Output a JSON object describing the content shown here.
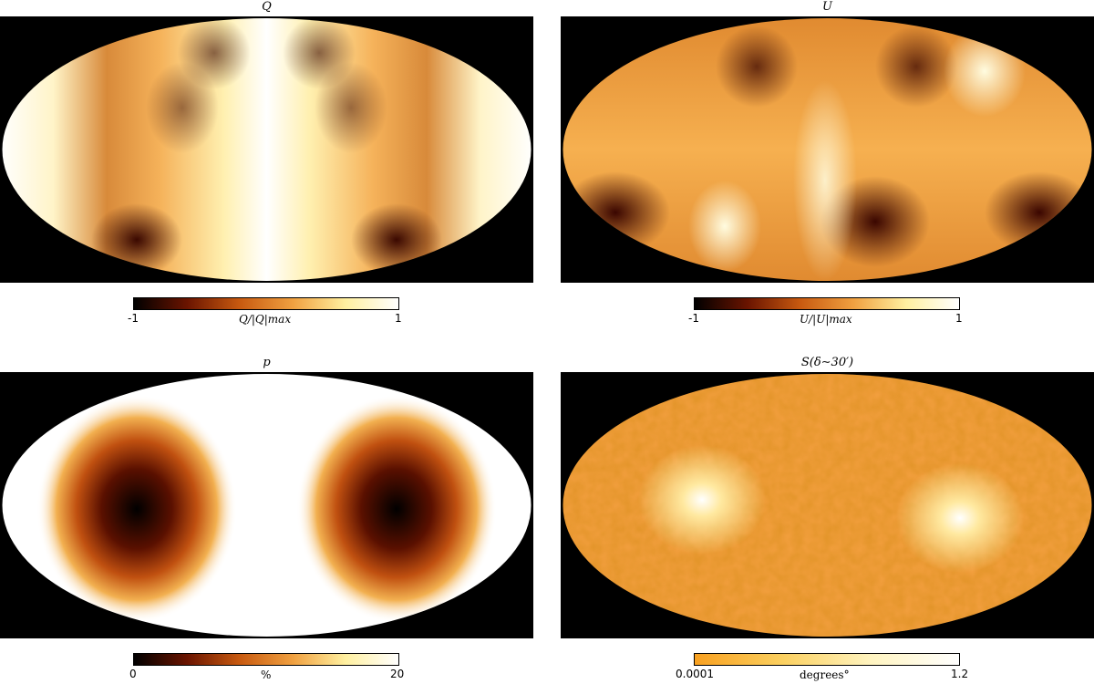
{
  "panels": {
    "q": {
      "title": "Q",
      "colorbar": {
        "min": "-1",
        "max": "1",
        "label": "Q/|Q|max",
        "colormap": [
          "#000000",
          "#6a1400",
          "#c85a10",
          "#f0a040",
          "#fff0a0",
          "#ffffff"
        ]
      }
    },
    "u": {
      "title": "U",
      "colorbar": {
        "min": "-1",
        "max": "1",
        "label": "U/|U|max",
        "colormap": [
          "#000000",
          "#6a1400",
          "#c85a10",
          "#f0a040",
          "#fff0a0",
          "#ffffff"
        ]
      }
    },
    "p": {
      "title": "p",
      "colorbar": {
        "min": "0",
        "max": "20",
        "label": "%",
        "colormap": [
          "#000000",
          "#6a1400",
          "#c85a10",
          "#f0a040",
          "#fff0a0",
          "#ffffff"
        ]
      }
    },
    "s": {
      "title": "S(δ∼30′)",
      "colorbar": {
        "min": "0.0001",
        "max": "1.2",
        "label": "degrees°",
        "colormap": [
          "#f8a020",
          "#fbd060",
          "#fff4c0",
          "#ffffff"
        ]
      }
    }
  }
}
